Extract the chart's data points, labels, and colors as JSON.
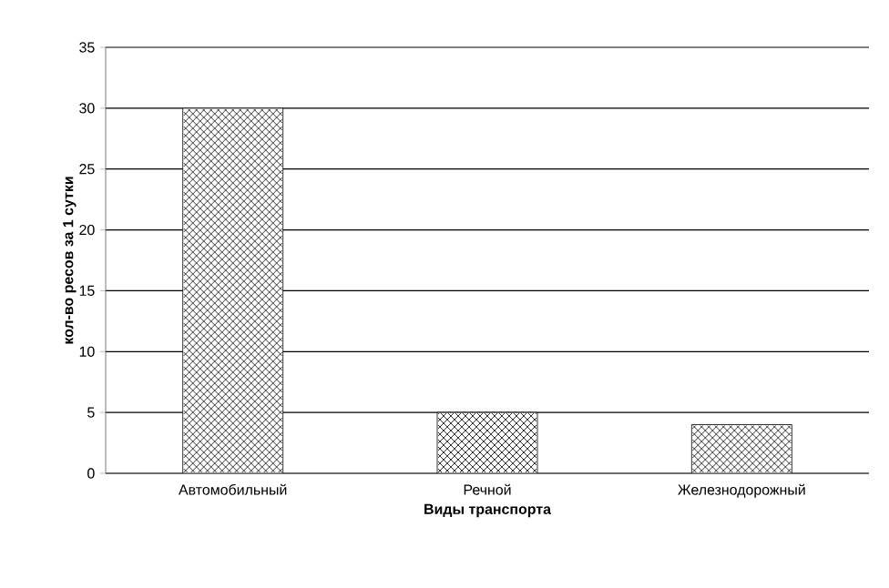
{
  "chart_data": {
    "type": "bar",
    "xlabel": "Виды транспорта",
    "ylabel": "кол-во ресов за 1 сутки",
    "categories": [
      "Автомобильный",
      "Речной",
      "Железнодорожный"
    ],
    "values": [
      30,
      5,
      4
    ],
    "color": "#ffffff",
    "ylim": [
      0,
      35
    ],
    "yticks": [
      0,
      5,
      10,
      15,
      20,
      25,
      30,
      35
    ],
    "grid": "y"
  }
}
